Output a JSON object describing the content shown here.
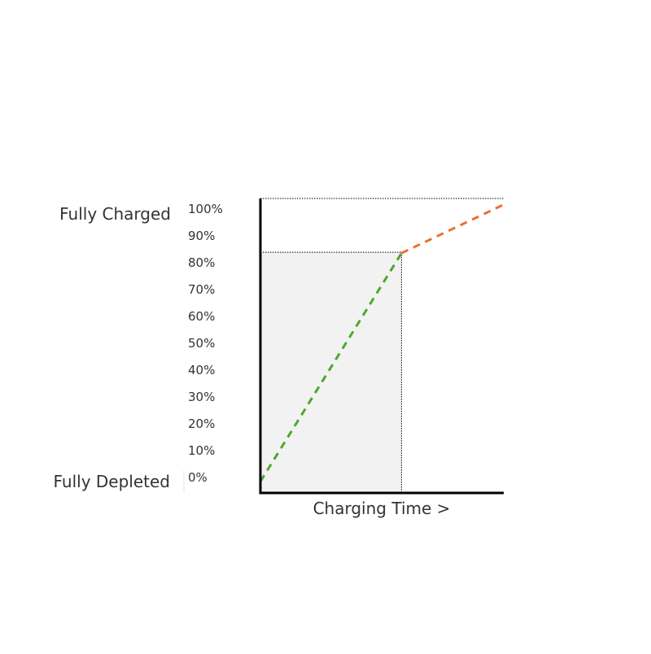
{
  "chart_data": {
    "type": "line",
    "title": "",
    "xlabel": "Charging Time >",
    "ylabel": "",
    "ylim": [
      0,
      100
    ],
    "xlim": [
      0,
      1
    ],
    "x_tick_labels": [],
    "y_tick_labels": [
      "100%",
      "90%",
      "80%",
      "70%",
      "60%",
      "50%",
      "40%",
      "30%",
      "20%",
      "10%",
      "0%"
    ],
    "y_ticks": [
      100,
      90,
      80,
      70,
      60,
      50,
      40,
      30,
      20,
      10,
      0
    ],
    "side_labels": {
      "top": "Fully Charged",
      "bottom": "Fully Depleted"
    },
    "series": [
      {
        "style": "dashed",
        "color": "#4ea72e",
        "points": [
          [
            0,
            2
          ],
          [
            0.58,
            82
          ]
        ]
      },
      {
        "style": "dashed",
        "color": "#e97132",
        "points": [
          [
            0.58,
            82
          ],
          [
            1.0,
            99
          ]
        ]
      }
    ],
    "shaded_region": {
      "x": [
        0,
        0.58
      ],
      "y": [
        0,
        82
      ],
      "color": "#f2f2f2"
    },
    "reference_lines": [
      {
        "orientation": "horizontal",
        "value": 100,
        "style": "dotted"
      },
      {
        "orientation": "horizontal",
        "value": 82,
        "style": "dotted",
        "x_to": 0.58
      },
      {
        "orientation": "vertical",
        "value": 0.58,
        "style": "dotted"
      }
    ],
    "grid": false,
    "legend": "none"
  }
}
